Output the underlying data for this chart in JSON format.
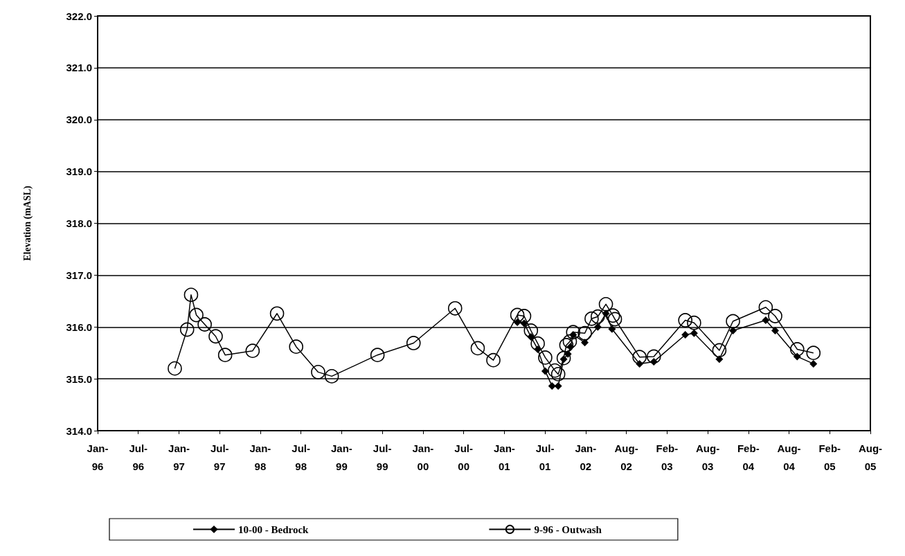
{
  "chart_data": {
    "type": "line",
    "ylabel": "Elevation (mASL)",
    "xlim": [
      "1996-01-01",
      "2005-08-16"
    ],
    "xticks": [
      {
        "value": "1996-01-01",
        "label": "Jan-\n96"
      },
      {
        "value": "1996-07-04",
        "label": "Jul-\n96"
      },
      {
        "value": "1997-01-05",
        "label": "Jan-\n97"
      },
      {
        "value": "1997-07-09",
        "label": "Jul-\n97"
      },
      {
        "value": "1998-01-10",
        "label": "Jan-\n98"
      },
      {
        "value": "1998-07-14",
        "label": "Jul-\n98"
      },
      {
        "value": "1999-01-15",
        "label": "Jan-\n99"
      },
      {
        "value": "1999-07-19",
        "label": "Jul-\n99"
      },
      {
        "value": "2000-01-20",
        "label": "Jan-\n00"
      },
      {
        "value": "2000-07-23",
        "label": "Jul-\n00"
      },
      {
        "value": "2001-01-24",
        "label": "Jan-\n01"
      },
      {
        "value": "2001-07-28",
        "label": "Jul-\n01"
      },
      {
        "value": "2002-01-29",
        "label": "Jan-\n02"
      },
      {
        "value": "2002-08-02",
        "label": "Aug-\n02"
      },
      {
        "value": "2003-02-03",
        "label": "Feb-\n03"
      },
      {
        "value": "2003-08-07",
        "label": "Aug-\n03"
      },
      {
        "value": "2004-02-08",
        "label": "Feb-\n04"
      },
      {
        "value": "2004-08-11",
        "label": "Aug-\n04"
      },
      {
        "value": "2005-02-12",
        "label": "Feb-\n05"
      },
      {
        "value": "2005-08-16",
        "label": "Aug-\n05"
      }
    ],
    "ylim": [
      314,
      322
    ],
    "yticks": [
      {
        "value": 314,
        "label": "314.0"
      },
      {
        "value": 315,
        "label": "315.0"
      },
      {
        "value": 316,
        "label": "316.0"
      },
      {
        "value": 317,
        "label": "317.0"
      },
      {
        "value": 318,
        "label": "318.0"
      },
      {
        "value": 319,
        "label": "319.0"
      },
      {
        "value": 320,
        "label": "320.0"
      },
      {
        "value": 321,
        "label": "321.0"
      },
      {
        "value": 322,
        "label": "322.0"
      }
    ],
    "grid": "y",
    "legend": "bottom",
    "line_style": "solid",
    "series": [
      {
        "name": "10-00 - Bedrock",
        "color": "#000000",
        "marker": "diamond",
        "x": [
          "2001-03-24",
          "2001-04-24",
          "2001-05-25",
          "2001-06-25",
          "2001-07-29",
          "2001-08-29",
          "2001-09-26",
          "2001-10-21",
          "2001-11-09",
          "2001-11-21",
          "2001-12-03",
          "2002-01-25",
          "2002-03-25",
          "2002-05-01",
          "2002-05-29",
          "2002-10-01",
          "2002-12-05",
          "2003-04-27",
          "2003-06-06",
          "2003-09-29",
          "2003-11-30",
          "2004-04-27",
          "2004-06-09",
          "2004-09-17",
          "2004-11-30"
        ],
        "values": [
          316.09,
          316.07,
          315.81,
          315.57,
          315.15,
          314.86,
          314.86,
          315.38,
          315.48,
          315.62,
          315.85,
          315.7,
          316.0,
          316.26,
          315.96,
          315.29,
          315.33,
          315.85,
          315.88,
          315.38,
          315.93,
          316.13,
          315.93,
          315.43,
          315.29
        ]
      },
      {
        "name": "9-96 - Outwash",
        "color": "#000000",
        "marker": "circle",
        "x": [
          "1996-12-17",
          "1997-02-11",
          "1997-03-01",
          "1997-03-25",
          "1997-05-02",
          "1997-06-21",
          "1997-08-03",
          "1997-12-06",
          "1998-03-27",
          "1998-06-22",
          "1998-09-30",
          "1998-12-01",
          "1999-06-27",
          "1999-12-08",
          "2000-06-14",
          "2000-09-25",
          "2000-12-05",
          "2001-03-24",
          "2001-04-24",
          "2001-05-25",
          "2001-06-25",
          "2001-07-29",
          "2001-09-11",
          "2001-09-26",
          "2001-10-21",
          "2001-11-02",
          "2001-11-18",
          "2001-12-03",
          "2002-01-25",
          "2002-02-25",
          "2002-03-25",
          "2002-05-01",
          "2002-06-02",
          "2002-06-11",
          "2002-10-01",
          "2002-12-05",
          "2003-04-27",
          "2003-06-06",
          "2003-09-29",
          "2003-11-30",
          "2004-04-27",
          "2004-06-09",
          "2004-09-17",
          "2004-11-30"
        ],
        "values": [
          315.2,
          315.95,
          316.62,
          316.23,
          316.05,
          315.82,
          315.46,
          315.54,
          316.26,
          315.62,
          315.13,
          315.05,
          315.46,
          315.69,
          316.36,
          315.59,
          315.36,
          316.23,
          316.21,
          315.93,
          315.68,
          315.41,
          315.16,
          315.09,
          315.4,
          315.65,
          315.72,
          315.9,
          315.88,
          316.16,
          316.2,
          316.44,
          316.22,
          316.15,
          315.42,
          315.43,
          316.13,
          316.08,
          315.55,
          316.11,
          316.38,
          316.21,
          315.57,
          315.5
        ]
      }
    ]
  }
}
